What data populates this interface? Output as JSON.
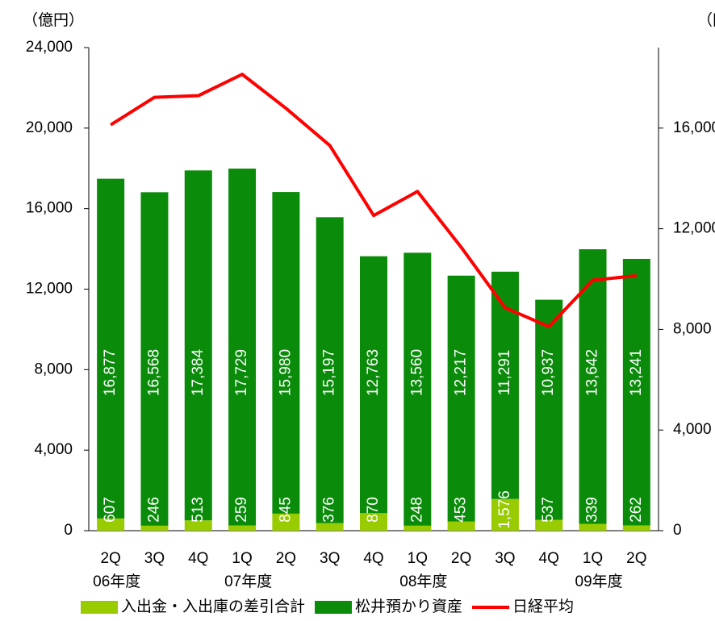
{
  "chart_data": {
    "type": "bar",
    "y_unit_label": "（億円）",
    "y2_unit_label": "（円）",
    "categories": [
      "2Q",
      "3Q",
      "4Q",
      "1Q",
      "2Q",
      "3Q",
      "4Q",
      "1Q",
      "2Q",
      "3Q",
      "4Q",
      "1Q",
      "2Q"
    ],
    "x_groups": [
      {
        "label": "06年度",
        "start": 0
      },
      {
        "label": "07年度",
        "start": 3
      },
      {
        "label": "08年度",
        "start": 7
      },
      {
        "label": "09年度",
        "start": 11
      }
    ],
    "series": [
      {
        "name": "入出金・入出庫の差引合計",
        "color": "#99cc00",
        "stack": true,
        "values": [
          607,
          246,
          513,
          259,
          845,
          376,
          870,
          248,
          453,
          1576,
          537,
          339,
          262
        ],
        "value_labels": [
          "607",
          "246",
          "513",
          "259",
          "845",
          "376",
          "870",
          "248",
          "453",
          "1,576",
          "537",
          "339",
          "262"
        ]
      },
      {
        "name": "松井預かり資産",
        "color": "#0a8c0a",
        "stack": true,
        "values": [
          16877,
          16568,
          17384,
          17729,
          15980,
          15197,
          12763,
          13560,
          12217,
          11291,
          10937,
          13642,
          13241
        ],
        "value_labels": [
          "16,877",
          "16,568",
          "17,384",
          "17,729",
          "15,980",
          "15,197",
          "12,763",
          "13,560",
          "12,217",
          "11,291",
          "10,937",
          "13,642",
          "13,241"
        ]
      },
      {
        "name": "日経平均",
        "color": "#ff0000",
        "type": "line",
        "axis": "y2",
        "values": [
          16128,
          17226,
          17288,
          18138,
          16786,
          15308,
          12526,
          13481,
          11260,
          8860,
          8110,
          9958,
          10133
        ]
      }
    ],
    "ylim": [
      0,
      24000
    ],
    "yticks": [
      0,
      {
        "value": 4000,
        "label": "4,000"
      },
      {
        "value": 8000,
        "label": "8,000"
      },
      {
        "value": 12000,
        "label": "12,000"
      },
      {
        "value": 16000,
        "label": "16,000"
      },
      {
        "value": 20000,
        "label": "20,000"
      },
      {
        "value": 24000,
        "label": "24,000"
      }
    ],
    "y2lim": [
      0,
      19200
    ],
    "y2ticks": [
      0,
      {
        "value": 4000,
        "label": "4,000"
      },
      {
        "value": 8000,
        "label": "8,000"
      },
      {
        "value": 12000,
        "label": "12,000"
      },
      {
        "value": 16000,
        "label": "16,000"
      }
    ],
    "legend": "bottom"
  }
}
